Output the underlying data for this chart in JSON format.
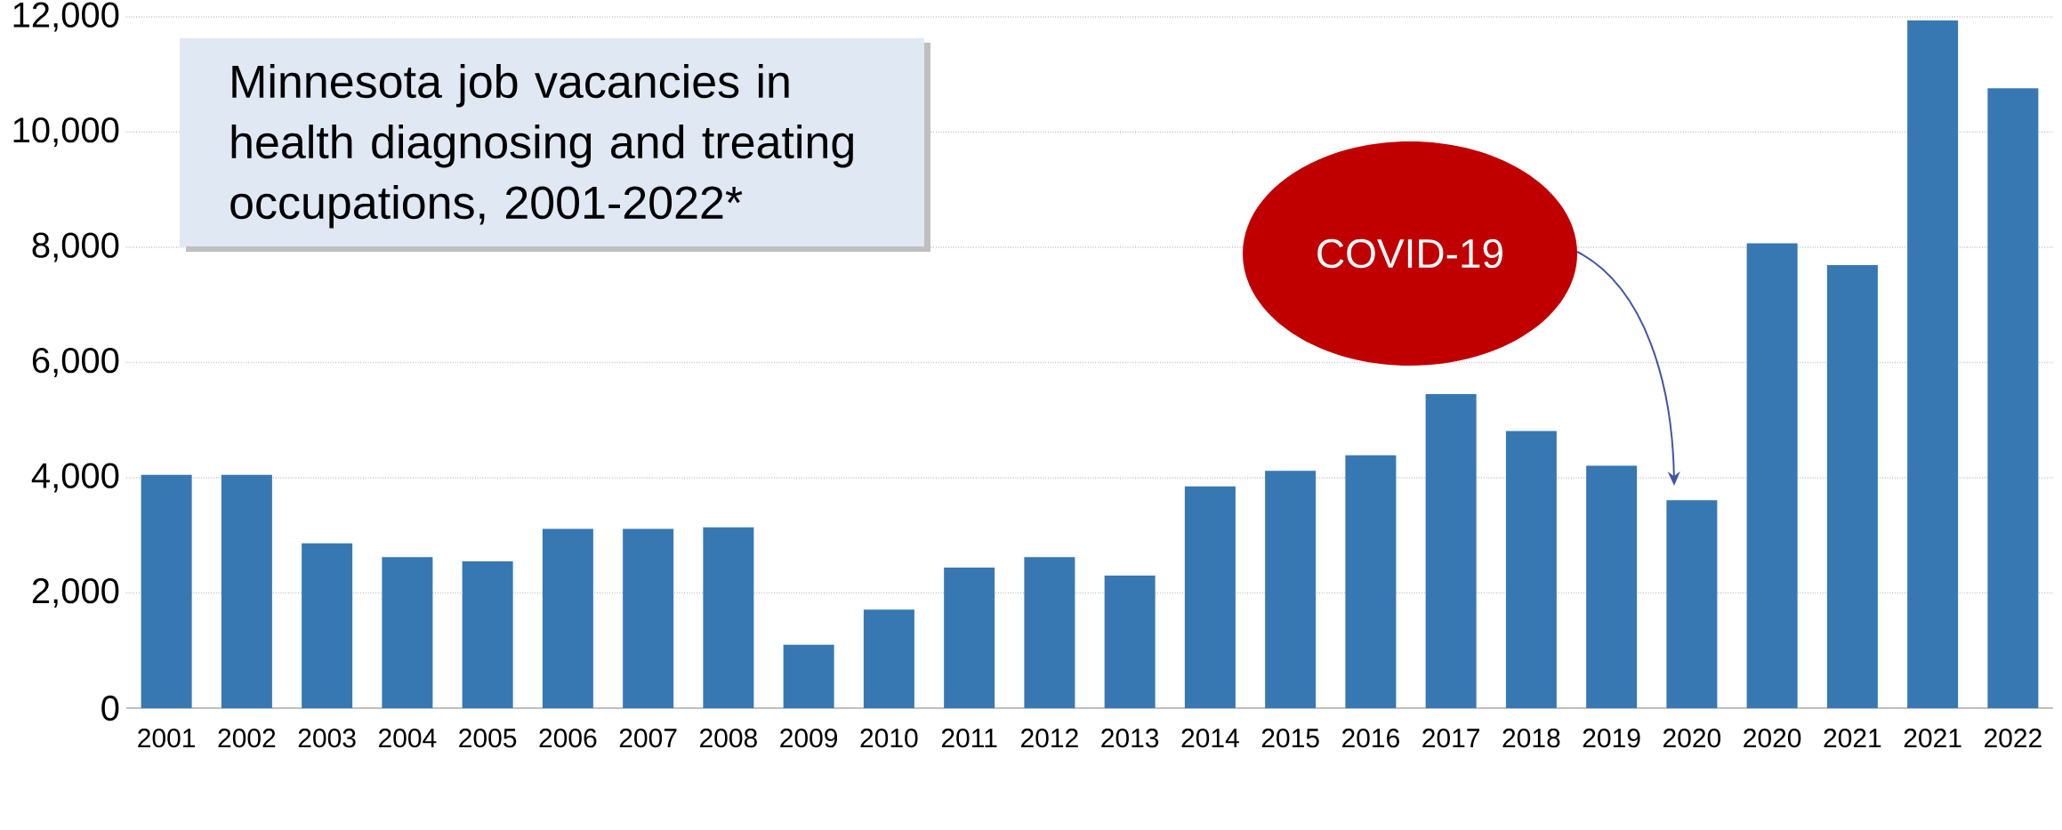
{
  "chart_data": {
    "type": "bar",
    "title": "Minnesota job vacancies in health diagnosing and treating occupations, 2001-2022*",
    "categories": [
      "2001",
      "2002",
      "2003",
      "2004",
      "2005",
      "2006",
      "2007",
      "2008",
      "2009",
      "2010",
      "2011",
      "2012",
      "2013",
      "2014",
      "2015",
      "2016",
      "2017",
      "2018",
      "2019",
      "2020",
      "2020",
      "2021",
      "2021",
      "2022"
    ],
    "values": [
      4050,
      4050,
      2860,
      2620,
      2550,
      3110,
      3110,
      3140,
      1100,
      1710,
      2440,
      2620,
      2300,
      3850,
      4120,
      4390,
      5450,
      4810,
      4210,
      3610,
      8070,
      7690,
      11940,
      10760
    ],
    "color": "#3778b3",
    "ylim": [
      0,
      12000
    ],
    "yticks": [
      0,
      {
        "value": 2000,
        "label": "2,000"
      },
      {
        "value": 4000,
        "label": "4,000"
      },
      {
        "value": 6000,
        "label": "6,000"
      },
      {
        "value": 8000,
        "label": "8,000"
      },
      {
        "value": 10000,
        "label": "10,000"
      },
      {
        "value": 12000,
        "label": "12,000"
      }
    ],
    "grid": "y",
    "annotations": [
      "COVID-19"
    ]
  }
}
